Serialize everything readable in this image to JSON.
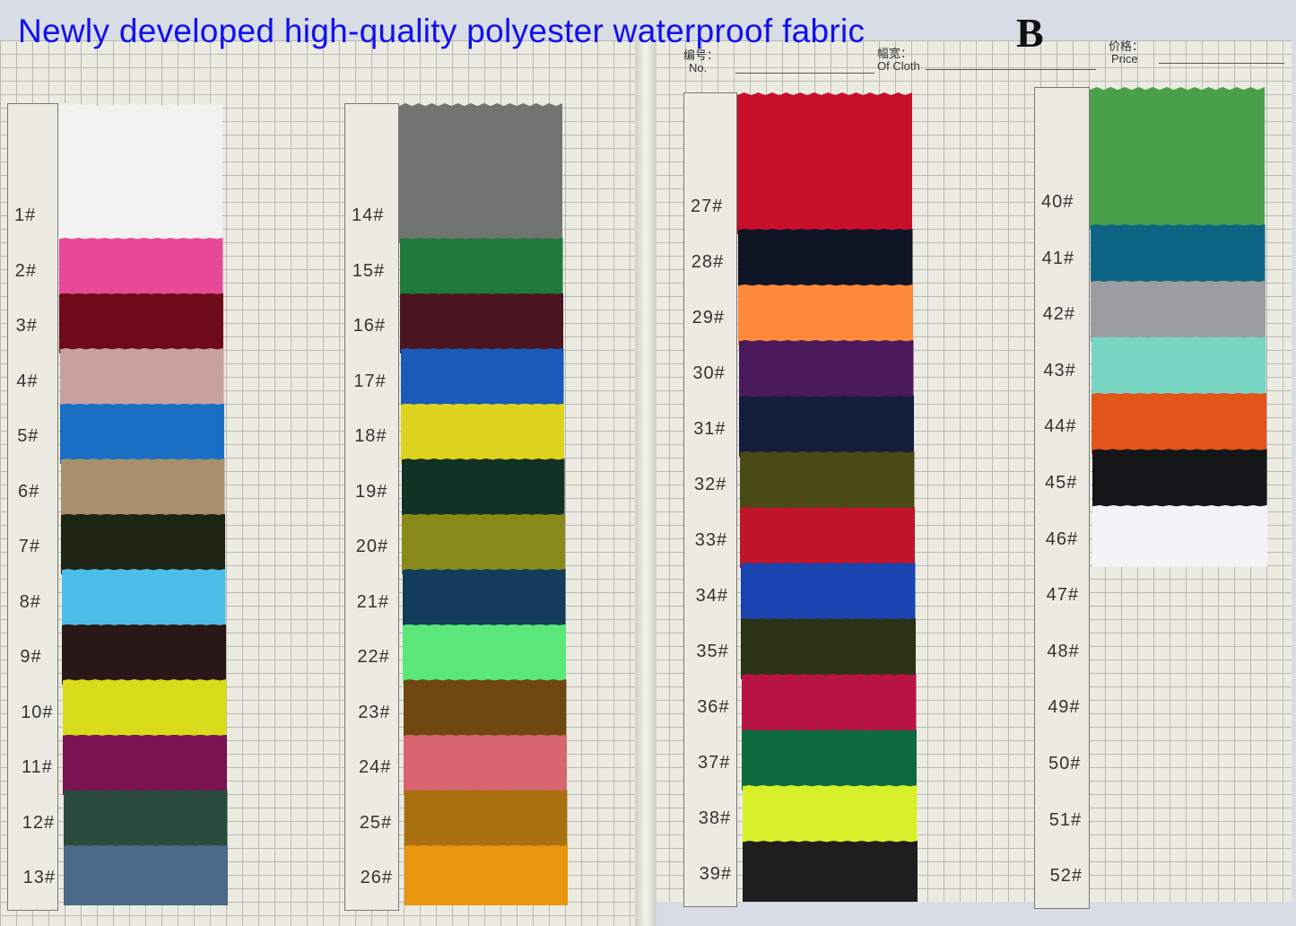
{
  "title": "Newly developed high-quality polyester waterproof fabric",
  "card_letter": "B",
  "header_fields": [
    {
      "cn": "编号：",
      "en": "No."
    },
    {
      "cn": "幅宽：",
      "en": "Of Cloth"
    },
    {
      "cn": "价格：",
      "en": "Price"
    }
  ],
  "swatches": [
    {
      "label": "1#",
      "color": "#f2f2f0"
    },
    {
      "label": "2#",
      "color": "#e8489a"
    },
    {
      "label": "3#",
      "color": "#6e0a1a"
    },
    {
      "label": "4#",
      "color": "#c9a0a0"
    },
    {
      "label": "5#",
      "color": "#1a6fc4"
    },
    {
      "label": "6#",
      "color": "#a8906a"
    },
    {
      "label": "7#",
      "color": "#1e2414"
    },
    {
      "label": "8#",
      "color": "#4cbde6"
    },
    {
      "label": "9#",
      "color": "#2a1818"
    },
    {
      "label": "10#",
      "color": "#d9dc1a"
    },
    {
      "label": "11#",
      "color": "#7a1450"
    },
    {
      "label": "12#",
      "color": "#2a4a3c"
    },
    {
      "label": "13#",
      "color": "#4a6a88"
    },
    {
      "label": "14#",
      "color": "#707472"
    },
    {
      "label": "15#",
      "color": "#1f7a3a"
    },
    {
      "label": "16#",
      "color": "#4a1420"
    },
    {
      "label": "17#",
      "color": "#1a5ab8"
    },
    {
      "label": "18#",
      "color": "#ddd21e"
    },
    {
      "label": "19#",
      "color": "#123224"
    },
    {
      "label": "20#",
      "color": "#8a8a1a"
    },
    {
      "label": "21#",
      "color": "#123c5a"
    },
    {
      "label": "22#",
      "color": "#5ae87a"
    },
    {
      "label": "23#",
      "color": "#6e4810"
    },
    {
      "label": "24#",
      "color": "#d86470"
    },
    {
      "label": "25#",
      "color": "#a8700e"
    },
    {
      "label": "26#",
      "color": "#e8960e"
    },
    {
      "label": "27#",
      "color": "#c8102a"
    },
    {
      "label": "28#",
      "color": "#0e1424"
    },
    {
      "label": "29#",
      "color": "#ff8a3c"
    },
    {
      "label": "30#",
      "color": "#4a1a5a"
    },
    {
      "label": "31#",
      "color": "#141e3c"
    },
    {
      "label": "32#",
      "color": "#4a4a16"
    },
    {
      "label": "33#",
      "color": "#c0142a"
    },
    {
      "label": "34#",
      "color": "#1a44b0"
    },
    {
      "label": "35#",
      "color": "#2a3414"
    },
    {
      "label": "36#",
      "color": "#b81446"
    },
    {
      "label": "37#",
      "color": "#0e6a3e"
    },
    {
      "label": "38#",
      "color": "#d8f02a"
    },
    {
      "label": "39#",
      "color": "#1e1e1e"
    },
    {
      "label": "40#",
      "color": "#4aa048"
    },
    {
      "label": "41#",
      "color": "#0e6484"
    },
    {
      "label": "42#",
      "color": "#9a9ea0"
    },
    {
      "label": "43#",
      "color": "#7ad6c4"
    },
    {
      "label": "44#",
      "color": "#e2541a"
    },
    {
      "label": "45#",
      "color": "#141618"
    },
    {
      "label": "46#",
      "color": "#f4f4f8"
    },
    {
      "label": "47#",
      "color": null
    },
    {
      "label": "48#",
      "color": null
    },
    {
      "label": "49#",
      "color": null
    },
    {
      "label": "50#",
      "color": null
    },
    {
      "label": "51#",
      "color": null
    },
    {
      "label": "52#",
      "color": null
    }
  ]
}
